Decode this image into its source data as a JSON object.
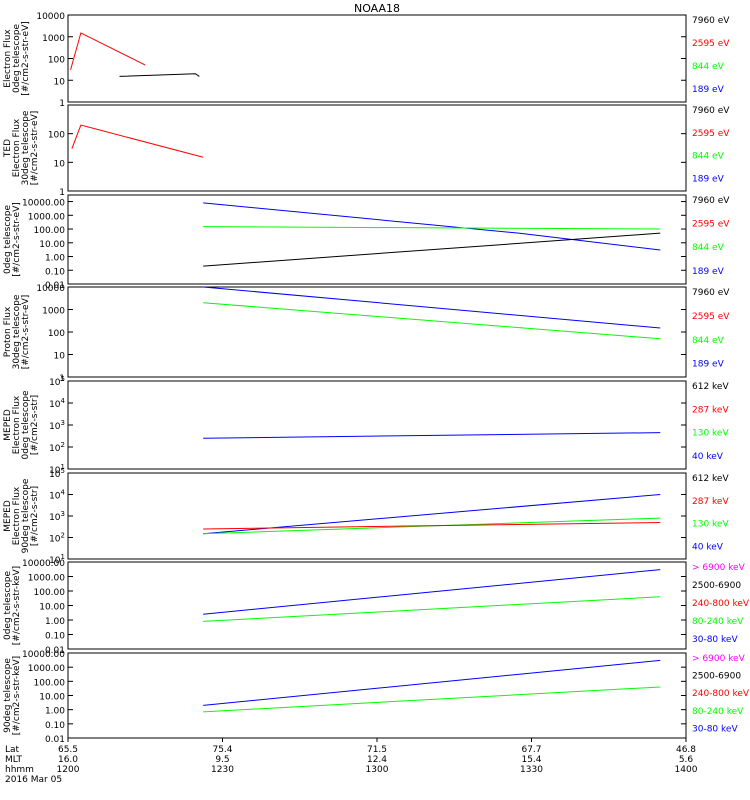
{
  "title": "NOAA18",
  "colors": {
    "black": "#000000",
    "red": "#ff0000",
    "green": "#00ff00",
    "blue": "#0000ff",
    "magenta": "#ff00ff"
  },
  "footer": {
    "rows": [
      {
        "label": "Lat",
        "values": [
          "65.5",
          "75.4",
          "71.5",
          "67.7",
          "46.8"
        ]
      },
      {
        "label": "MLT",
        "values": [
          "16.0",
          "9.5",
          "12.4",
          "15.4",
          "5.6"
        ]
      },
      {
        "label": "hhmm",
        "values": [
          "1200",
          "1230",
          "1300",
          "1330",
          "1400"
        ]
      }
    ],
    "date": "2016 Mar 05"
  },
  "chart_data": [
    {
      "type": "line",
      "ylabel": [
        "Electron Flux",
        "0deg telescope",
        "[#/cm2-s-str-eV]"
      ],
      "yscale": "log",
      "ylim": [
        1,
        10000
      ],
      "yticks": [
        "1",
        "10",
        "100",
        "1000",
        "10000"
      ],
      "legend": [
        {
          "text": "7960 eV",
          "color": "black"
        },
        {
          "text": "2595 eV",
          "color": "red"
        },
        {
          "text": "844 eV",
          "color": "green"
        },
        {
          "text": "189 eV",
          "color": "blue"
        }
      ],
      "series": [
        {
          "color": "red",
          "points": [
            [
              0.2,
              30
            ],
            [
              1,
              1500
            ],
            [
              6,
              50
            ]
          ]
        },
        {
          "color": "black",
          "points": [
            [
              4,
              15
            ],
            [
              9.9,
              20
            ],
            [
              10.2,
              15
            ]
          ]
        }
      ]
    },
    {
      "type": "line",
      "ylabel": [
        "TED",
        "Electron Flux",
        "30deg telescope",
        "[#/cm2-s-str-eV]"
      ],
      "yscale": "log",
      "ylim": [
        1,
        1000
      ],
      "yticks": [
        "1",
        "10",
        "100"
      ],
      "legend": [
        {
          "text": "7960 eV",
          "color": "black"
        },
        {
          "text": "2595 eV",
          "color": "red"
        },
        {
          "text": "844 eV",
          "color": "green"
        },
        {
          "text": "189 eV",
          "color": "blue"
        }
      ],
      "series": [
        {
          "color": "red",
          "points": [
            [
              0.3,
              30
            ],
            [
              1,
              200
            ],
            [
              10.5,
              15
            ]
          ]
        }
      ]
    },
    {
      "type": "line",
      "ylabel": [
        "0deg telescope",
        "[#/cm2-s-str-eV]"
      ],
      "yscale": "log",
      "ylim": [
        0.01,
        30000
      ],
      "yticks": [
        "0.01",
        "0.10",
        "1.00",
        "10.00",
        "100.00",
        "1000.00",
        "10000.00"
      ],
      "legend": [
        {
          "text": "7960 eV",
          "color": "black"
        },
        {
          "text": "2595 eV",
          "color": "red"
        },
        {
          "text": "844 eV",
          "color": "green"
        },
        {
          "text": "189 eV",
          "color": "blue"
        }
      ],
      "series": [
        {
          "color": "blue",
          "points": [
            [
              10.5,
              8000
            ],
            [
              35,
              50
            ],
            [
              46,
              3
            ]
          ]
        },
        {
          "color": "green",
          "points": [
            [
              10.5,
              150
            ],
            [
              46,
              100
            ]
          ]
        },
        {
          "color": "black",
          "points": [
            [
              10.5,
              0.2
            ],
            [
              46,
              50
            ]
          ]
        }
      ]
    },
    {
      "type": "line",
      "ylabel": [
        "Proton Flux",
        "30deg telescope",
        "[#/cm2-s-str-eV]"
      ],
      "yscale": "log",
      "ylim": [
        1,
        10000
      ],
      "yticks": [
        "1",
        "10",
        "100",
        "1000",
        "10000"
      ],
      "legend": [
        {
          "text": "7960 eV",
          "color": "black"
        },
        {
          "text": "2595 eV",
          "color": "red"
        },
        {
          "text": "844 eV",
          "color": "green"
        },
        {
          "text": "189 eV",
          "color": "blue"
        }
      ],
      "series": [
        {
          "color": "blue",
          "points": [
            [
              10.5,
              10000
            ],
            [
              46,
              150
            ]
          ]
        },
        {
          "color": "green",
          "points": [
            [
              10.5,
              2000
            ],
            [
              46,
              50
            ]
          ]
        }
      ]
    },
    {
      "type": "line",
      "ylabel": [
        "MEPED",
        "Electron Flux",
        "0deg telescope",
        "[#/cm2-s-str]"
      ],
      "yscale": "log",
      "ylim": [
        10,
        100000
      ],
      "yticks": [
        "10^1",
        "10^2",
        "10^3",
        "10^4",
        "10^5"
      ],
      "legend": [
        {
          "text": "612 keV",
          "color": "black"
        },
        {
          "text": "287 keV",
          "color": "red"
        },
        {
          "text": "130 keV",
          "color": "green"
        },
        {
          "text": "40 keV",
          "color": "blue"
        }
      ],
      "series": [
        {
          "color": "blue",
          "points": [
            [
              10.5,
              250
            ],
            [
              46,
              450
            ]
          ]
        }
      ]
    },
    {
      "type": "line",
      "ylabel": [
        "MEPED",
        "Electron Flux",
        "90deg telescope",
        "[#/cm2-s-str]"
      ],
      "yscale": "log",
      "ylim": [
        10,
        100000
      ],
      "yticks": [
        "10^1",
        "10^2",
        "10^3",
        "10^4",
        "10^5"
      ],
      "legend": [
        {
          "text": "612 keV",
          "color": "black"
        },
        {
          "text": "287 keV",
          "color": "red"
        },
        {
          "text": "130 keV",
          "color": "green"
        },
        {
          "text": "40 keV",
          "color": "blue"
        }
      ],
      "series": [
        {
          "color": "blue",
          "points": [
            [
              10.5,
              150
            ],
            [
              46,
              10000
            ]
          ]
        },
        {
          "color": "green",
          "points": [
            [
              10.5,
              150
            ],
            [
              46,
              800
            ]
          ]
        },
        {
          "color": "red",
          "points": [
            [
              10.5,
              250
            ],
            [
              46,
              500
            ]
          ]
        }
      ]
    },
    {
      "type": "line",
      "ylabel": [
        "0deg telescope",
        "[#/cm2-s-str-keV]"
      ],
      "yscale": "log",
      "ylim": [
        0.01,
        10000
      ],
      "yticks": [
        "0.01",
        "0.10",
        "1.00",
        "10.00",
        "100.00",
        "1000.00",
        "10000.00"
      ],
      "legend": [
        {
          "text": "> 6900 keV",
          "color": "magenta"
        },
        {
          "text": "2500-6900",
          "color": "black"
        },
        {
          "text": "240-800 keV",
          "color": "red"
        },
        {
          "text": "80-240 keV",
          "color": "green"
        },
        {
          "text": "30-80 keV",
          "color": "blue"
        }
      ],
      "series": [
        {
          "color": "blue",
          "points": [
            [
              10.5,
              2.5
            ],
            [
              46,
              3000
            ]
          ]
        },
        {
          "color": "green",
          "points": [
            [
              10.5,
              0.8
            ],
            [
              46,
              40
            ]
          ]
        }
      ]
    },
    {
      "type": "line",
      "ylabel": [
        "90deg telescope",
        "[#/cm2-s-str-keV]"
      ],
      "yscale": "log",
      "ylim": [
        0.01,
        10000
      ],
      "yticks": [
        "0.01",
        "0.10",
        "1.00",
        "10.00",
        "100.00",
        "1000.00",
        "10000.00"
      ],
      "legend": [
        {
          "text": "> 6900 keV",
          "color": "magenta"
        },
        {
          "text": "2500-6900",
          "color": "black"
        },
        {
          "text": "240-800 keV",
          "color": "red"
        },
        {
          "text": "80-240 keV",
          "color": "green"
        },
        {
          "text": "30-80 keV",
          "color": "blue"
        }
      ],
      "series": [
        {
          "color": "blue",
          "points": [
            [
              10.5,
              2
            ],
            [
              46,
              3000
            ]
          ]
        },
        {
          "color": "green",
          "points": [
            [
              10.5,
              0.7
            ],
            [
              46,
              40
            ]
          ]
        }
      ]
    }
  ]
}
